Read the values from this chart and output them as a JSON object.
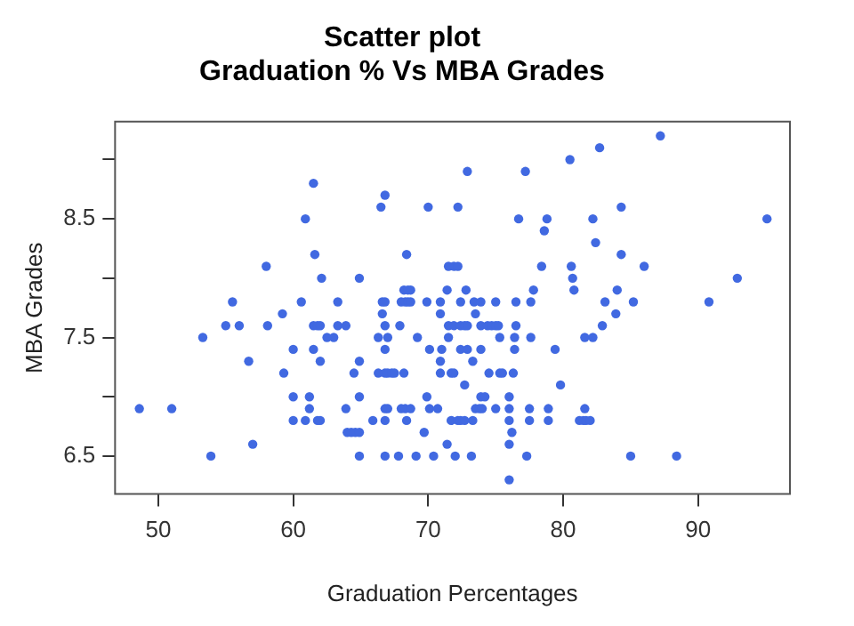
{
  "chart_data": {
    "type": "scatter",
    "title": "Scatter plot\nGraduation % Vs MBA Grades",
    "xlabel": "Graduation Percentages",
    "ylabel": "MBA Grades",
    "color": "#4169e1",
    "marker": "circle",
    "legend": false,
    "grid": false,
    "xlim": [
      46.8,
      96.8
    ],
    "xticks": [
      50,
      60,
      70,
      80,
      90
    ],
    "ylim": [
      6.18,
      9.32
    ],
    "yticks": [
      6.5,
      {
        "value": 7,
        "label": null
      },
      7.5,
      {
        "value": 8,
        "label": null
      },
      8.5,
      {
        "value": 9,
        "label": null
      }
    ],
    "x": [
      48.6,
      51.0,
      53.9,
      53.3,
      55.0,
      55.5,
      56.0,
      56.7,
      57.0,
      58.0,
      58.1,
      59.2,
      59.3,
      60.0,
      60.0,
      60.0,
      60.6,
      60.9,
      60.9,
      61.2,
      61.2,
      61.5,
      61.5,
      61.6,
      61.5,
      61.8,
      62.0,
      61.8,
      62.0,
      62.0,
      62.1,
      62.5,
      63.0,
      63.3,
      63.3,
      63.9,
      63.9,
      64.0,
      64.3,
      64.6,
      64.9,
      64.5,
      64.9,
      64.9,
      64.9,
      64.9,
      65.9,
      66.3,
      66.3,
      66.8,
      67.0,
      67.3,
      67.5,
      68.2,
      66.5,
      66.8,
      66.6,
      66.8,
      66.6,
      66.8,
      67.0,
      66.8,
      66.8,
      67.0,
      66.8,
      66.8,
      67.8,
      67.9,
      68.0,
      68.3,
      68.5,
      68.7,
      68.2,
      68.5,
      68.7,
      68.4,
      68.0,
      68.3,
      68.7,
      68.4,
      69.1,
      69.2,
      69.7,
      69.9,
      69.9,
      70.0,
      70.1,
      70.7,
      70.1,
      70.4,
      70.9,
      70.9,
      70.9,
      70.9,
      71.0,
      71.4,
      71.5,
      71.4,
      71.5,
      71.5,
      71.7,
      71.7,
      72.2,
      72.9,
      71.9,
      72.2,
      72.8,
      72.4,
      73.4,
      73.9,
      75.0,
      76.5,
      77.6,
      77.8,
      78.4,
      76.7,
      77.2,
      78.6,
      78.8,
      80.5,
      82.7,
      87.2,
      82.2,
      84.3,
      82.4,
      84.3,
      86.0,
      80.6,
      80.7,
      80.8,
      84.0,
      83.1,
      85.2,
      83.9,
      82.9,
      81.6,
      82.2,
      79.4,
      79.8,
      95.1,
      92.9,
      90.8,
      73.5,
      71.9,
      72.4,
      72.7,
      72.9,
      73.9,
      74.4,
      74.7,
      75.0,
      75.2,
      76.5,
      75.3,
      76.4,
      77.6,
      72.4,
      72.9,
      73.9,
      76.4,
      73.3,
      71.9,
      74.5,
      75.3,
      75.5,
      76.3,
      72.7,
      73.9,
      74.2,
      76.0,
      73.5,
      73.8,
      74.0,
      75.0,
      76.0,
      77.5,
      78.9,
      81.6,
      72.2,
      72.4,
      72.7,
      73.3,
      76.0,
      77.5,
      78.9,
      81.2,
      81.5,
      81.7,
      82.0,
      76.2,
      76.0,
      72.0,
      73.2,
      77.3,
      85.0,
      88.4,
      76.0
    ],
    "values": [
      6.9,
      6.9,
      6.5,
      7.5,
      7.6,
      7.8,
      7.6,
      7.3,
      6.6,
      8.1,
      7.6,
      7.7,
      7.2,
      7.4,
      7.0,
      6.8,
      7.8,
      6.8,
      8.5,
      7.0,
      6.9,
      8.8,
      7.4,
      8.2,
      7.6,
      7.6,
      7.6,
      6.8,
      6.8,
      7.3,
      8.0,
      7.5,
      7.5,
      7.8,
      7.6,
      7.6,
      6.9,
      6.7,
      6.7,
      6.7,
      6.7,
      7.2,
      7.3,
      7.0,
      6.5,
      8.0,
      6.8,
      7.5,
      7.2,
      7.2,
      7.2,
      7.2,
      7.2,
      7.2,
      8.6,
      8.7,
      7.8,
      7.8,
      7.7,
      7.6,
      7.5,
      7.4,
      6.9,
      6.9,
      6.8,
      6.5,
      6.5,
      7.6,
      7.8,
      7.8,
      7.8,
      7.8,
      7.9,
      7.9,
      7.9,
      8.2,
      6.9,
      6.9,
      6.9,
      6.8,
      6.5,
      7.5,
      6.7,
      7.0,
      7.8,
      8.6,
      6.9,
      6.9,
      7.4,
      6.5,
      7.8,
      7.7,
      7.3,
      7.2,
      7.4,
      7.9,
      8.1,
      6.6,
      7.6,
      7.5,
      7.2,
      6.8,
      8.6,
      8.9,
      8.1,
      8.1,
      7.9,
      7.8,
      7.8,
      7.8,
      7.8,
      7.8,
      7.8,
      7.9,
      8.1,
      8.5,
      8.9,
      8.4,
      8.5,
      9.0,
      9.1,
      9.2,
      8.5,
      8.6,
      8.3,
      8.2,
      8.1,
      8.1,
      8.0,
      7.9,
      7.9,
      7.8,
      7.8,
      7.7,
      7.6,
      7.5,
      7.5,
      7.4,
      7.1,
      8.5,
      8.0,
      7.8,
      7.7,
      7.6,
      7.6,
      7.6,
      7.6,
      7.6,
      7.6,
      7.6,
      7.6,
      7.6,
      7.6,
      7.5,
      7.5,
      7.5,
      7.4,
      7.4,
      7.4,
      7.4,
      7.3,
      7.2,
      7.2,
      7.2,
      7.2,
      7.2,
      7.1,
      7.0,
      7.0,
      7.0,
      6.9,
      6.9,
      6.9,
      6.9,
      6.9,
      6.9,
      6.9,
      6.9,
      6.8,
      6.8,
      6.8,
      6.8,
      6.8,
      6.8,
      6.8,
      6.8,
      6.8,
      6.8,
      6.8,
      6.7,
      6.6,
      6.5,
      6.5,
      6.5,
      6.5,
      6.5,
      6.3
    ]
  }
}
